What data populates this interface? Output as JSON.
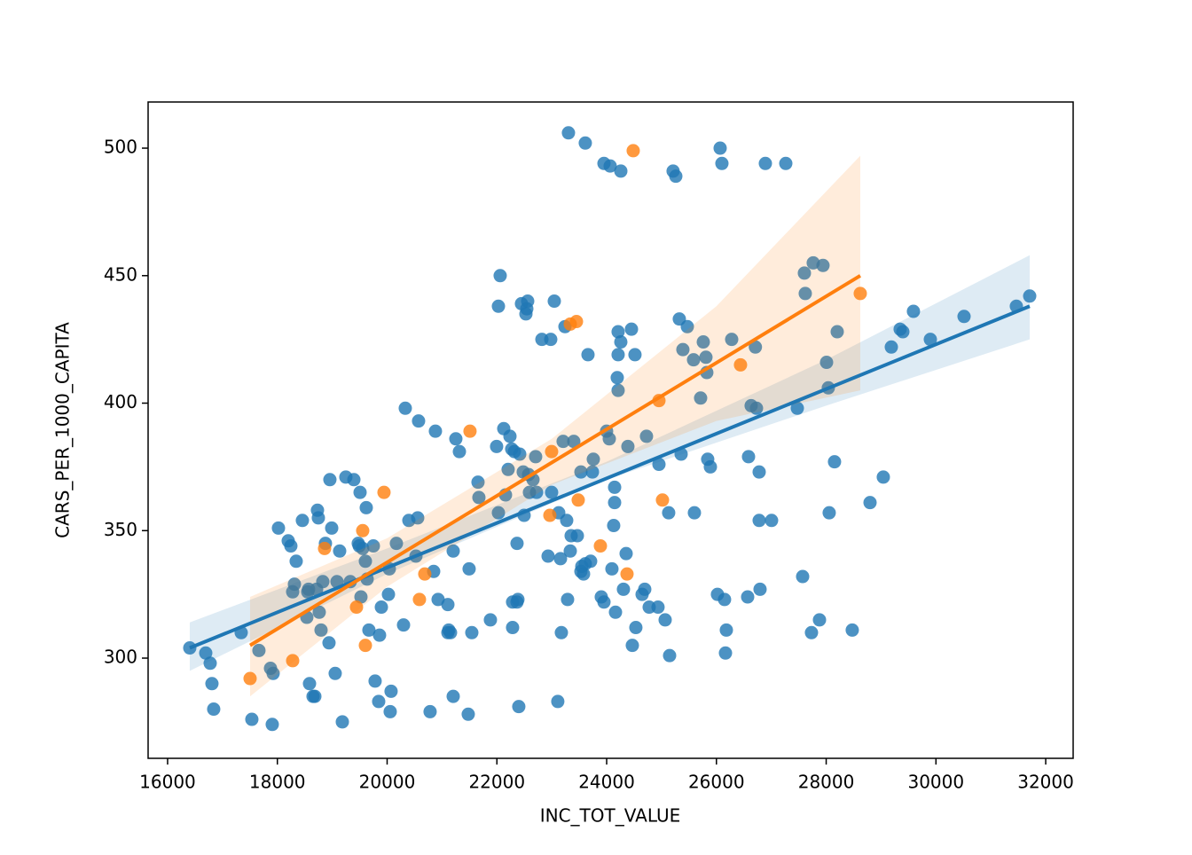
{
  "chart_data": {
    "type": "scatter",
    "xlabel": "INC_TOT_VALUE",
    "ylabel": "CARS_PER_1000_CAPITA",
    "xlim": [
      15645,
      32500
    ],
    "ylim": [
      260.7,
      518.1
    ],
    "xticks": [
      16000,
      18000,
      20000,
      22000,
      24000,
      26000,
      28000,
      30000,
      32000
    ],
    "yticks": [
      300,
      350,
      400,
      450,
      500
    ],
    "series": [
      {
        "color": "#1f77b4",
        "x": [
          16404,
          16695,
          16776,
          16808,
          16840,
          17341,
          17535,
          17664,
          17875,
          17923,
          17907,
          18020,
          18198,
          18246,
          18279,
          18311,
          18343,
          18456,
          18537,
          18553,
          18569,
          18586,
          18650,
          18683,
          18715,
          18731,
          18763,
          18747,
          18796,
          18828,
          18876,
          18941,
          18957,
          18990,
          19054,
          19087,
          19135,
          19184,
          19248,
          19329,
          19394,
          19474,
          19491,
          19507,
          19523,
          19555,
          19604,
          19620,
          19636,
          19668,
          19749,
          19781,
          19846,
          19862,
          19895,
          20024,
          20040,
          20072,
          20056,
          20169,
          20299,
          20331,
          20396,
          20525,
          20557,
          20573,
          20783,
          20848,
          20880,
          20929,
          21107,
          21107,
          21123,
          21155,
          21204,
          21204,
          21252,
          21317,
          21478,
          21494,
          21543,
          21656,
          21672,
          21882,
          21995,
          22060,
          22028,
          22028,
          22125,
          22157,
          22205,
          22238,
          22270,
          22286,
          22286,
          22319,
          22367,
          22367,
          22383,
          22399,
          22416,
          22448,
          22480,
          22496,
          22529,
          22545,
          22561,
          22577,
          22593,
          22658,
          22706,
          22723,
          22820,
          22933,
          22981,
          22997,
          23046,
          23110,
          23127,
          23159,
          23175,
          23207,
          23240,
          23272,
          23288,
          23337,
          23353,
          23401,
          23466,
          23531,
          23531,
          23547,
          23579,
          23611,
          23660,
          23708,
          23741,
          23757,
          23902,
          23951,
          23999,
          24048,
          24096,
          24128,
          24145,
          24145,
          24161,
          24193,
          24209,
          24209,
          24209,
          24258,
          24306,
          24355,
          24387,
          24452,
          24468,
          24516,
          24532,
          24646,
          24694,
          24726,
          24775,
          24936,
          24953,
          25066,
          25130,
          25147,
          25357,
          25324,
          25389,
          25470,
          25583,
          25599,
          25712,
          25761,
          25809,
          25825,
          25841,
          25890,
          26019,
          26148,
          26165,
          26181,
          26278,
          26569,
          26585,
          26633,
          26730,
          26779,
          26795,
          26779,
          26710,
          27005,
          27474,
          27571,
          27603,
          27619,
          27732,
          27764,
          27878,
          28007,
          28039,
          28055,
          28152,
          28201,
          27942,
          28475,
          28799,
          29041,
          29187,
          29348,
          29397,
          29590,
          29898,
          30512,
          31465,
          31708,
          23304,
          23611,
          23951,
          24064,
          24258,
          25211,
          25260,
          26068,
          26100,
          26892,
          27264
        ],
        "y": [
          304,
          302,
          298,
          290,
          280,
          310,
          276,
          303,
          296,
          294,
          274,
          351,
          346,
          344,
          326,
          329,
          338,
          354,
          316,
          326,
          327,
          290,
          285,
          285,
          327,
          358,
          318,
          355,
          311,
          330,
          345,
          306,
          370,
          351,
          294,
          330,
          342,
          275,
          371,
          330,
          370,
          345,
          344,
          365,
          324,
          343,
          338,
          359,
          331,
          311,
          344,
          291,
          283,
          309,
          320,
          325,
          335,
          287,
          279,
          345,
          313,
          398,
          354,
          340,
          355,
          393,
          279,
          334,
          389,
          323,
          321,
          310,
          311,
          310,
          285,
          342,
          386,
          381,
          278,
          335,
          310,
          369,
          363,
          315,
          383,
          450,
          438,
          357,
          390,
          364,
          374,
          387,
          382,
          322,
          312,
          381,
          345,
          322,
          323,
          281,
          380,
          439,
          373,
          356,
          435,
          437,
          440,
          372,
          365,
          370,
          379,
          365,
          425,
          340,
          425,
          365,
          440,
          283,
          357,
          339,
          310,
          385,
          430,
          354,
          323,
          342,
          348,
          385,
          348,
          373,
          334,
          336,
          333,
          337,
          419,
          338,
          373,
          378,
          324,
          322,
          389,
          386,
          335,
          352,
          361,
          367,
          318,
          410,
          428,
          405,
          419,
          424,
          327,
          341,
          383,
          429,
          305,
          419,
          312,
          325,
          327,
          387,
          320,
          320,
          376,
          315,
          357,
          301,
          380,
          433,
          421,
          430,
          417,
          357,
          402,
          424,
          418,
          412,
          378,
          375,
          325,
          323,
          302,
          311,
          425,
          324,
          379,
          399,
          398,
          373,
          327,
          354,
          422,
          354,
          398,
          332,
          451,
          443,
          310,
          455,
          315,
          416,
          406,
          357,
          377,
          428,
          454,
          311,
          361,
          371,
          422,
          429,
          428,
          436,
          425,
          434,
          438,
          442,
          506,
          502,
          494,
          493,
          491,
          491,
          489,
          500,
          494,
          494,
          494
        ],
        "fit": {
          "x": [
            16404,
            31708
          ],
          "y": [
            304,
            438
          ]
        },
        "ci": {
          "x": [
            16404,
            20000,
            24000,
            28000,
            31708
          ],
          "lower": [
            295,
            333,
            370,
            399,
            425
          ],
          "upper": [
            314,
            343,
            377,
            417,
            458
          ]
        }
      },
      {
        "color": "#ff7f0e",
        "x": [
          17503,
          18279,
          18860,
          19442,
          19555,
          19604,
          19943,
          20589,
          20686,
          21510,
          22997,
          22965,
          23337,
          23450,
          23482,
          23886,
          24371,
          24484,
          24953,
          25017,
          26439,
          28621
        ],
        "y": [
          292,
          299,
          343,
          320,
          350,
          305,
          365,
          323,
          333,
          389,
          381,
          356,
          431,
          432,
          362,
          344,
          333,
          499,
          401,
          362,
          415,
          443
        ],
        "fit": {
          "x": [
            17503,
            28621
          ],
          "y": [
            305,
            450
          ]
        },
        "ci": {
          "x": [
            17503,
            20000,
            23000,
            26000,
            28621
          ],
          "lower": [
            285,
            328,
            368,
            393,
            405
          ],
          "upper": [
            324,
            347,
            386,
            438,
            497
          ]
        }
      }
    ]
  }
}
